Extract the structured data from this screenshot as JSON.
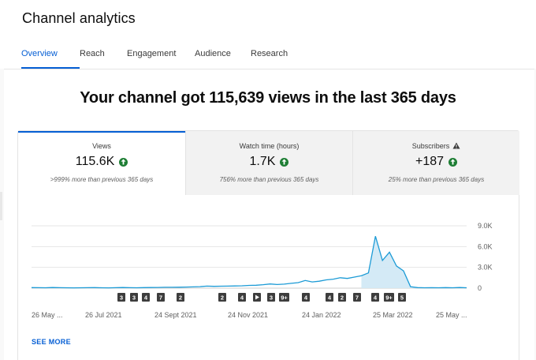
{
  "header": {
    "title": "Channel analytics",
    "tabs": [
      {
        "label": "Overview",
        "active": true
      },
      {
        "label": "Reach",
        "active": false
      },
      {
        "label": "Engagement",
        "active": false
      },
      {
        "label": "Audience",
        "active": false
      },
      {
        "label": "Research",
        "active": false
      }
    ]
  },
  "headline": "Your channel got 115,639 views in the last 365 days",
  "metrics": [
    {
      "label": "Views",
      "value": "115.6K",
      "comparison": ">999% more than previous 365 days",
      "trend_icon": "arrow-up-icon",
      "selected": true
    },
    {
      "label": "Watch time (hours)",
      "value": "1.7K",
      "comparison": "756% more than previous 365 days",
      "trend_icon": "arrow-up-icon",
      "selected": false
    },
    {
      "label": "Subscribers",
      "value": "+187",
      "comparison": "25% more than previous 365 days",
      "trend_icon": "arrow-up-icon",
      "warning_icon": "warning-icon",
      "selected": false
    }
  ],
  "colors": {
    "accent": "#065fd4",
    "trend_up": "#1e7e34",
    "line": "#1c9bd6",
    "area": "#cfe8f5",
    "marker": "#3d3d3d"
  },
  "chart_data": {
    "type": "area",
    "series": [
      {
        "values": [
          80,
          70,
          60,
          90,
          70,
          60,
          50,
          60,
          70,
          80,
          60,
          50,
          70,
          90,
          70,
          60,
          80,
          90,
          100,
          120,
          120,
          140,
          160,
          180,
          220,
          300,
          260,
          280,
          300,
          320,
          340,
          400,
          420,
          500,
          600,
          520,
          580,
          700,
          800,
          1100,
          900,
          1000,
          1200,
          1300,
          1500,
          1400,
          1600,
          1800,
          2200,
          7500,
          4000,
          5200,
          3200,
          2500,
          200,
          80,
          60,
          70,
          60,
          80,
          60,
          90,
          60
        ]
      }
    ],
    "x_tick_labels": [
      "26 May ...",
      "26 Jul 2021",
      "24 Sept 2021",
      "24 Nov 2021",
      "24 Jan 2022",
      "25 Mar 2022",
      "25 May ..."
    ],
    "y_tick_labels": [
      "9.0K",
      "6.0K",
      "3.0K",
      "0"
    ],
    "ylim": [
      0,
      9000
    ],
    "grid": true,
    "markers": [
      "3",
      "3",
      "4",
      "7",
      "2",
      "2",
      "4",
      "play",
      "3",
      "9+",
      "4",
      "4",
      "2",
      "7",
      "4",
      "9+",
      "5"
    ]
  },
  "footer": {
    "see_more": "SEE MORE"
  }
}
